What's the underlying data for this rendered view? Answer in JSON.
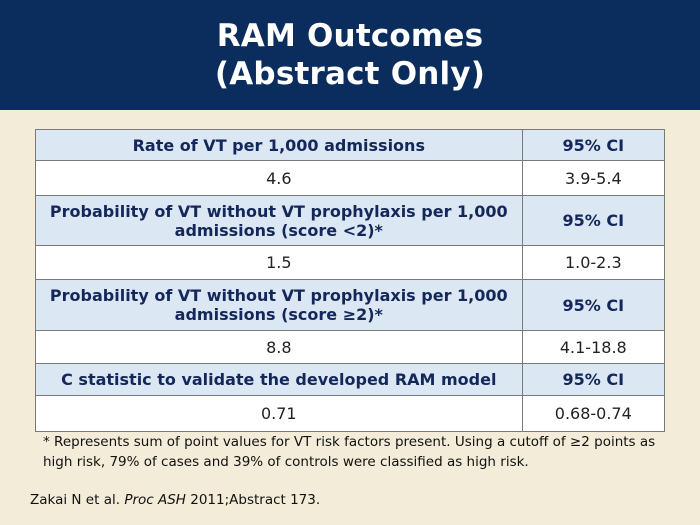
{
  "slide": {
    "title_line1": "RAM Outcomes",
    "title_line2": "(Abstract Only)"
  },
  "table": {
    "rows": [
      {
        "type": "header",
        "label": "Rate of VT per 1,000 admissions",
        "ci": "95% CI"
      },
      {
        "type": "value",
        "label": "4.6",
        "ci": "3.9-5.4"
      },
      {
        "type": "header",
        "label": "Probability of VT without VT prophylaxis per 1,000 admissions (score <2)*",
        "ci": "95% CI"
      },
      {
        "type": "value",
        "label": "1.5",
        "ci": "1.0-2.3"
      },
      {
        "type": "header",
        "label": "Probability of VT without VT prophylaxis per 1,000 admissions (score ≥2)*",
        "ci": "95% CI"
      },
      {
        "type": "value",
        "label": "8.8",
        "ci": "4.1-18.8"
      },
      {
        "type": "header",
        "label": "C statistic to validate the developed RAM model",
        "ci": "95% CI"
      },
      {
        "type": "value",
        "label": "0.71",
        "ci": "0.68-0.74"
      }
    ]
  },
  "footnote": "* Represents sum of point values for VT risk factors present. Using a cutoff of ≥2 points as high risk, 79% of cases and 39% of controls were classified as high risk.",
  "citation": {
    "authors": "Zakai N et al. ",
    "journal": "Proc ASH",
    "rest": " 2011;Abstract 173."
  }
}
